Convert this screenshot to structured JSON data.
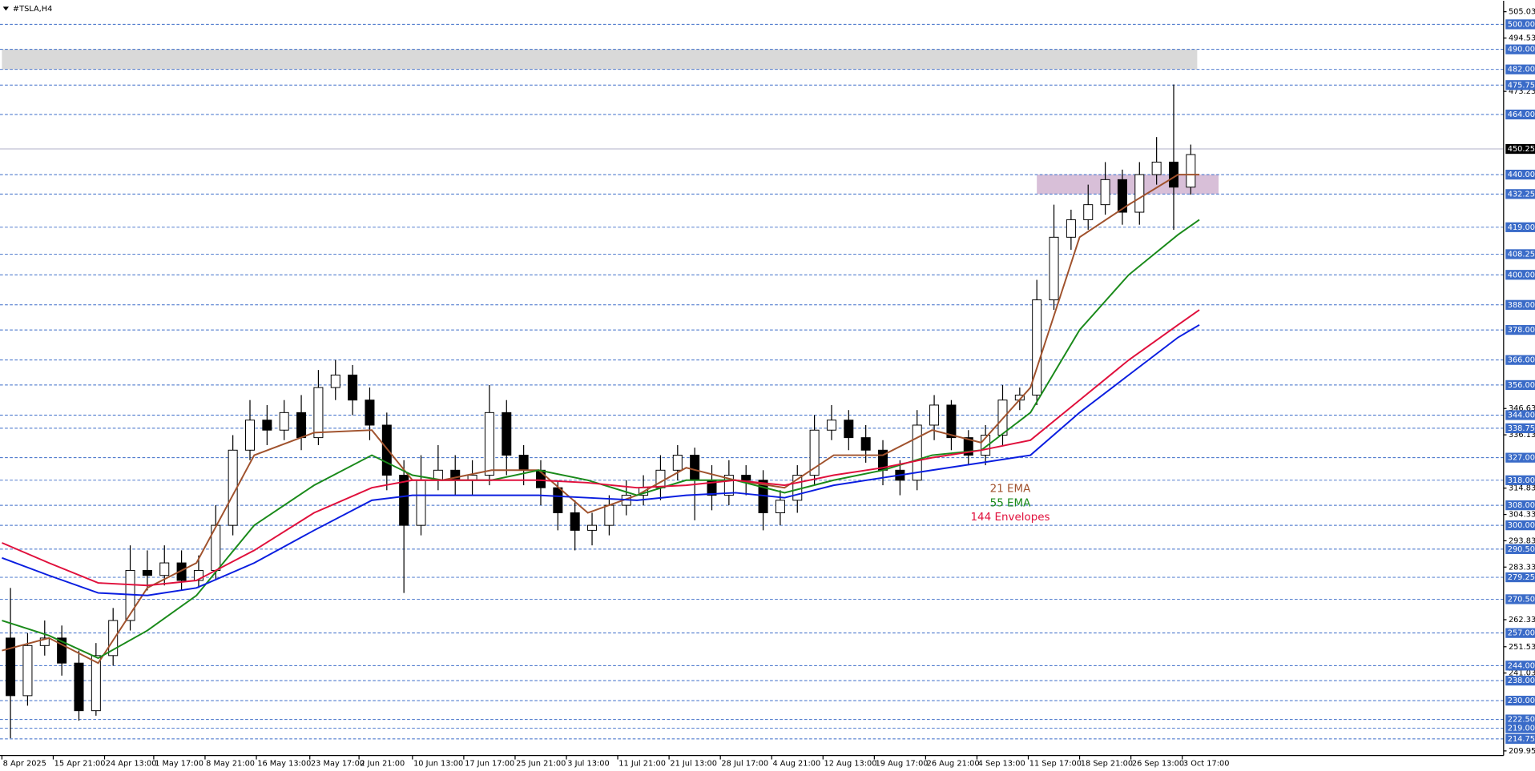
{
  "chart_data": {
    "type": "candlestick",
    "title": "#TSLA,H4",
    "xlim": [
      -0.9,
      702.3
    ],
    "ylim": [
      208.1,
      509.4
    ],
    "xticks": [
      {
        "value": 0,
        "label": "8 Apr 2025"
      },
      {
        "value": 24,
        "label": "15 Apr 21:00"
      },
      {
        "value": 48,
        "label": "24 Apr 13:00"
      },
      {
        "value": 71,
        "label": "1 May 17:00"
      },
      {
        "value": 95,
        "label": "8 May 21:00"
      },
      {
        "value": 119,
        "label": "16 May 13:00"
      },
      {
        "value": 144,
        "label": "23 May 17:00"
      },
      {
        "value": 167,
        "label": "2 Jun 21:00"
      },
      {
        "value": 192,
        "label": "10 Jun 13:00"
      },
      {
        "value": 216,
        "label": "17 Jun 17:00"
      },
      {
        "value": 240,
        "label": "25 Jun 21:00"
      },
      {
        "value": 264,
        "label": "3 Jul 13:00"
      },
      {
        "value": 288,
        "label": "11 Jul 21:00"
      },
      {
        "value": 312,
        "label": "21 Jul 13:00"
      },
      {
        "value": 336,
        "label": "28 Jul 17:00"
      },
      {
        "value": 360,
        "label": "4 Aug 21:00"
      },
      {
        "value": 384,
        "label": "12 Aug 13:00"
      },
      {
        "value": 408,
        "label": "19 Aug 17:00"
      },
      {
        "value": 432,
        "label": "26 Aug 21:00"
      },
      {
        "value": 456,
        "label": "4 Sep 13:00"
      },
      {
        "value": 480,
        "label": "11 Sep 17:00"
      },
      {
        "value": 504,
        "label": "18 Sep 21:00"
      },
      {
        "value": 528,
        "label": "26 Sep 13:00"
      },
      {
        "value": 552,
        "label": "3 Oct 17:00"
      }
    ],
    "yticks": [
      {
        "value": 505.03,
        "label": "505.03"
      },
      {
        "value": 494.53,
        "label": "494.53"
      },
      {
        "value": 473.23,
        "label": "473.23"
      },
      {
        "value": 346.63,
        "label": "346.63"
      },
      {
        "value": 336.13,
        "label": "336.13"
      },
      {
        "value": 314.83,
        "label": "314.83"
      },
      {
        "value": 304.33,
        "label": "304.33"
      },
      {
        "value": 293.83,
        "label": "293.83"
      },
      {
        "value": 283.33,
        "label": "283.33"
      },
      {
        "value": 262.33,
        "label": "262.33"
      },
      {
        "value": 251.53,
        "label": "251.53"
      },
      {
        "value": 241.03,
        "label": "241.03"
      },
      {
        "value": 209.95,
        "label": "209.95"
      }
    ],
    "levels": [
      {
        "value": 500,
        "label": "500.00"
      },
      {
        "value": 490,
        "label": "490.00"
      },
      {
        "value": 482,
        "label": "482.00"
      },
      {
        "value": 475.75,
        "label": "475.75"
      },
      {
        "value": 464,
        "label": "464.00"
      },
      {
        "value": 440,
        "label": "440.00"
      },
      {
        "value": 432.25,
        "label": "432.25"
      },
      {
        "value": 419,
        "label": "419.00"
      },
      {
        "value": 408.25,
        "label": "408.25"
      },
      {
        "value": 400,
        "label": "400.00"
      },
      {
        "value": 388,
        "label": "388.00"
      },
      {
        "value": 378,
        "label": "378.00"
      },
      {
        "value": 366,
        "label": "366.00"
      },
      {
        "value": 356,
        "label": "356.00"
      },
      {
        "value": 344,
        "label": "344.00"
      },
      {
        "value": 338.75,
        "label": "338.75"
      },
      {
        "value": 327,
        "label": "327.00"
      },
      {
        "value": 318,
        "label": "318.00"
      },
      {
        "value": 308,
        "label": "308.00"
      },
      {
        "value": 300,
        "label": "300.00"
      },
      {
        "value": 290.5,
        "label": "290.50"
      },
      {
        "value": 279.25,
        "label": "279.25"
      },
      {
        "value": 270.5,
        "label": "270.50"
      },
      {
        "value": 257,
        "label": "257.00"
      },
      {
        "value": 244,
        "label": "244.00"
      },
      {
        "value": 238,
        "label": "238.00"
      },
      {
        "value": 230,
        "label": "230.00"
      },
      {
        "value": 222.5,
        "label": "222.50"
      },
      {
        "value": 219,
        "label": "219.00"
      },
      {
        "value": 214.75,
        "label": "214.75"
      }
    ],
    "level_color": "#3a6bc8",
    "current_price": {
      "value": 450.25,
      "label": "450.25"
    },
    "zones": [
      {
        "x": [
          0,
          559
        ],
        "y": [
          482,
          490
        ],
        "color": "#d9d9d9"
      },
      {
        "x": [
          484,
          569
        ],
        "y": [
          432.25,
          440
        ],
        "color": "#d8bfd8"
      }
    ],
    "candles": {
      "x": [
        4,
        12,
        20,
        28,
        36,
        44,
        52,
        60,
        68,
        76,
        84,
        92,
        100,
        108,
        116,
        124,
        132,
        140,
        148,
        156,
        164,
        172,
        180,
        188,
        196,
        204,
        212,
        220,
        228,
        236,
        244,
        252,
        260,
        268,
        276,
        284,
        292,
        300,
        308,
        316,
        324,
        332,
        340,
        348,
        356,
        364,
        372,
        380,
        388,
        396,
        404,
        412,
        420,
        428,
        436,
        444,
        452,
        460,
        468,
        476,
        484,
        492,
        500,
        508,
        516,
        524,
        532,
        540,
        548,
        556
      ],
      "open": [
        255,
        232,
        252,
        255,
        245,
        226,
        248,
        262,
        282,
        280,
        285,
        278,
        282,
        300,
        330,
        342,
        338,
        345,
        335,
        355,
        360,
        350,
        340,
        320,
        300,
        318,
        322,
        318,
        320,
        345,
        328,
        322,
        315,
        305,
        298,
        300,
        308,
        312,
        315,
        322,
        328,
        318,
        312,
        320,
        318,
        305,
        310,
        320,
        338,
        342,
        335,
        330,
        322,
        318,
        340,
        348,
        335,
        328,
        336,
        350,
        352,
        390,
        415,
        422,
        428,
        438,
        425,
        440,
        445,
        435
      ],
      "high": [
        275,
        257,
        262,
        260,
        250,
        253,
        267,
        292,
        290,
        292,
        290,
        288,
        308,
        336,
        350,
        348,
        350,
        352,
        362,
        366,
        364,
        355,
        345,
        326,
        328,
        332,
        328,
        326,
        356,
        350,
        332,
        326,
        318,
        310,
        305,
        312,
        318,
        320,
        328,
        332,
        331,
        324,
        326,
        324,
        322,
        314,
        324,
        344,
        348,
        346,
        340,
        334,
        326,
        346,
        352,
        350,
        338,
        340,
        356,
        355,
        398,
        428,
        426,
        436,
        445,
        442,
        445,
        455,
        476,
        452
      ],
      "low": [
        215,
        228,
        248,
        240,
        222,
        224,
        244,
        258,
        274,
        276,
        274,
        275,
        278,
        296,
        326,
        332,
        334,
        330,
        332,
        350,
        344,
        334,
        314,
        273,
        296,
        314,
        312,
        312,
        316,
        320,
        316,
        308,
        298,
        290,
        292,
        296,
        304,
        308,
        310,
        318,
        302,
        306,
        308,
        312,
        298,
        300,
        305,
        316,
        334,
        330,
        325,
        316,
        312,
        314,
        334,
        330,
        324,
        324,
        332,
        346,
        348,
        386,
        410,
        418,
        424,
        420,
        420,
        436,
        418,
        432
      ],
      "close": [
        232,
        252,
        255,
        245,
        226,
        248,
        262,
        282,
        280,
        285,
        278,
        282,
        300,
        330,
        342,
        338,
        345,
        335,
        355,
        360,
        350,
        340,
        320,
        300,
        318,
        322,
        318,
        320,
        345,
        328,
        322,
        315,
        305,
        298,
        300,
        308,
        312,
        315,
        322,
        328,
        318,
        312,
        320,
        318,
        305,
        310,
        320,
        338,
        342,
        335,
        330,
        322,
        318,
        340,
        348,
        335,
        328,
        336,
        350,
        352,
        390,
        415,
        422,
        428,
        438,
        425,
        440,
        445,
        435,
        448
      ],
      "up_color": "#ffffff",
      "down_color": "#000000",
      "outline": "#000000"
    },
    "series": [
      {
        "name": "21 EMA",
        "color": "#a0522d",
        "x": [
          0,
          22,
          45,
          68,
          91,
          118,
          146,
          173,
          192,
          206,
          229,
          251,
          274,
          297,
          320,
          343,
          366,
          389,
          412,
          435,
          458,
          481,
          504,
          527,
          550,
          560
        ],
        "values": [
          250,
          255,
          245,
          275,
          285,
          328,
          337,
          338,
          318,
          318,
          322,
          322,
          305,
          312,
          323,
          318,
          315,
          328,
          328,
          338,
          333,
          355,
          415,
          428,
          440,
          440
        ]
      },
      {
        "name": "55 EMA",
        "color": "#1a8a1a",
        "x": [
          0,
          22,
          45,
          68,
          91,
          118,
          146,
          173,
          192,
          206,
          229,
          251,
          274,
          297,
          320,
          343,
          366,
          389,
          412,
          435,
          458,
          481,
          504,
          527,
          550,
          560
        ],
        "values": [
          262,
          256,
          247,
          258,
          272,
          300,
          316,
          328,
          320,
          318,
          318,
          322,
          318,
          312,
          318,
          318,
          313,
          318,
          322,
          328,
          330,
          345,
          378,
          400,
          416,
          422
        ]
      },
      {
        "name": "144 Envelopes",
        "color": "#e0103c",
        "x": [
          0,
          22,
          45,
          68,
          91,
          118,
          146,
          173,
          192,
          206,
          229,
          251,
          274,
          297,
          320,
          343,
          366,
          389,
          412,
          435,
          458,
          481,
          504,
          527,
          550,
          560
        ],
        "values": [
          293,
          285,
          277,
          276,
          278,
          290,
          305,
          315,
          318,
          318,
          318,
          318,
          317,
          315,
          316,
          318,
          316,
          320,
          323,
          327,
          330,
          334,
          350,
          366,
          380,
          386
        ]
      },
      {
        "color": "#0a1ee0",
        "x": [
          0,
          22,
          45,
          68,
          91,
          118,
          146,
          173,
          192,
          206,
          229,
          251,
          274,
          297,
          320,
          343,
          366,
          389,
          412,
          435,
          458,
          481,
          504,
          527,
          550,
          560
        ],
        "values": [
          287,
          280,
          273,
          272,
          275,
          285,
          298,
          310,
          312,
          312,
          312,
          312,
          311,
          310,
          312,
          313,
          311,
          316,
          319,
          322,
          325,
          328,
          345,
          360,
          375,
          380
        ]
      }
    ]
  }
}
